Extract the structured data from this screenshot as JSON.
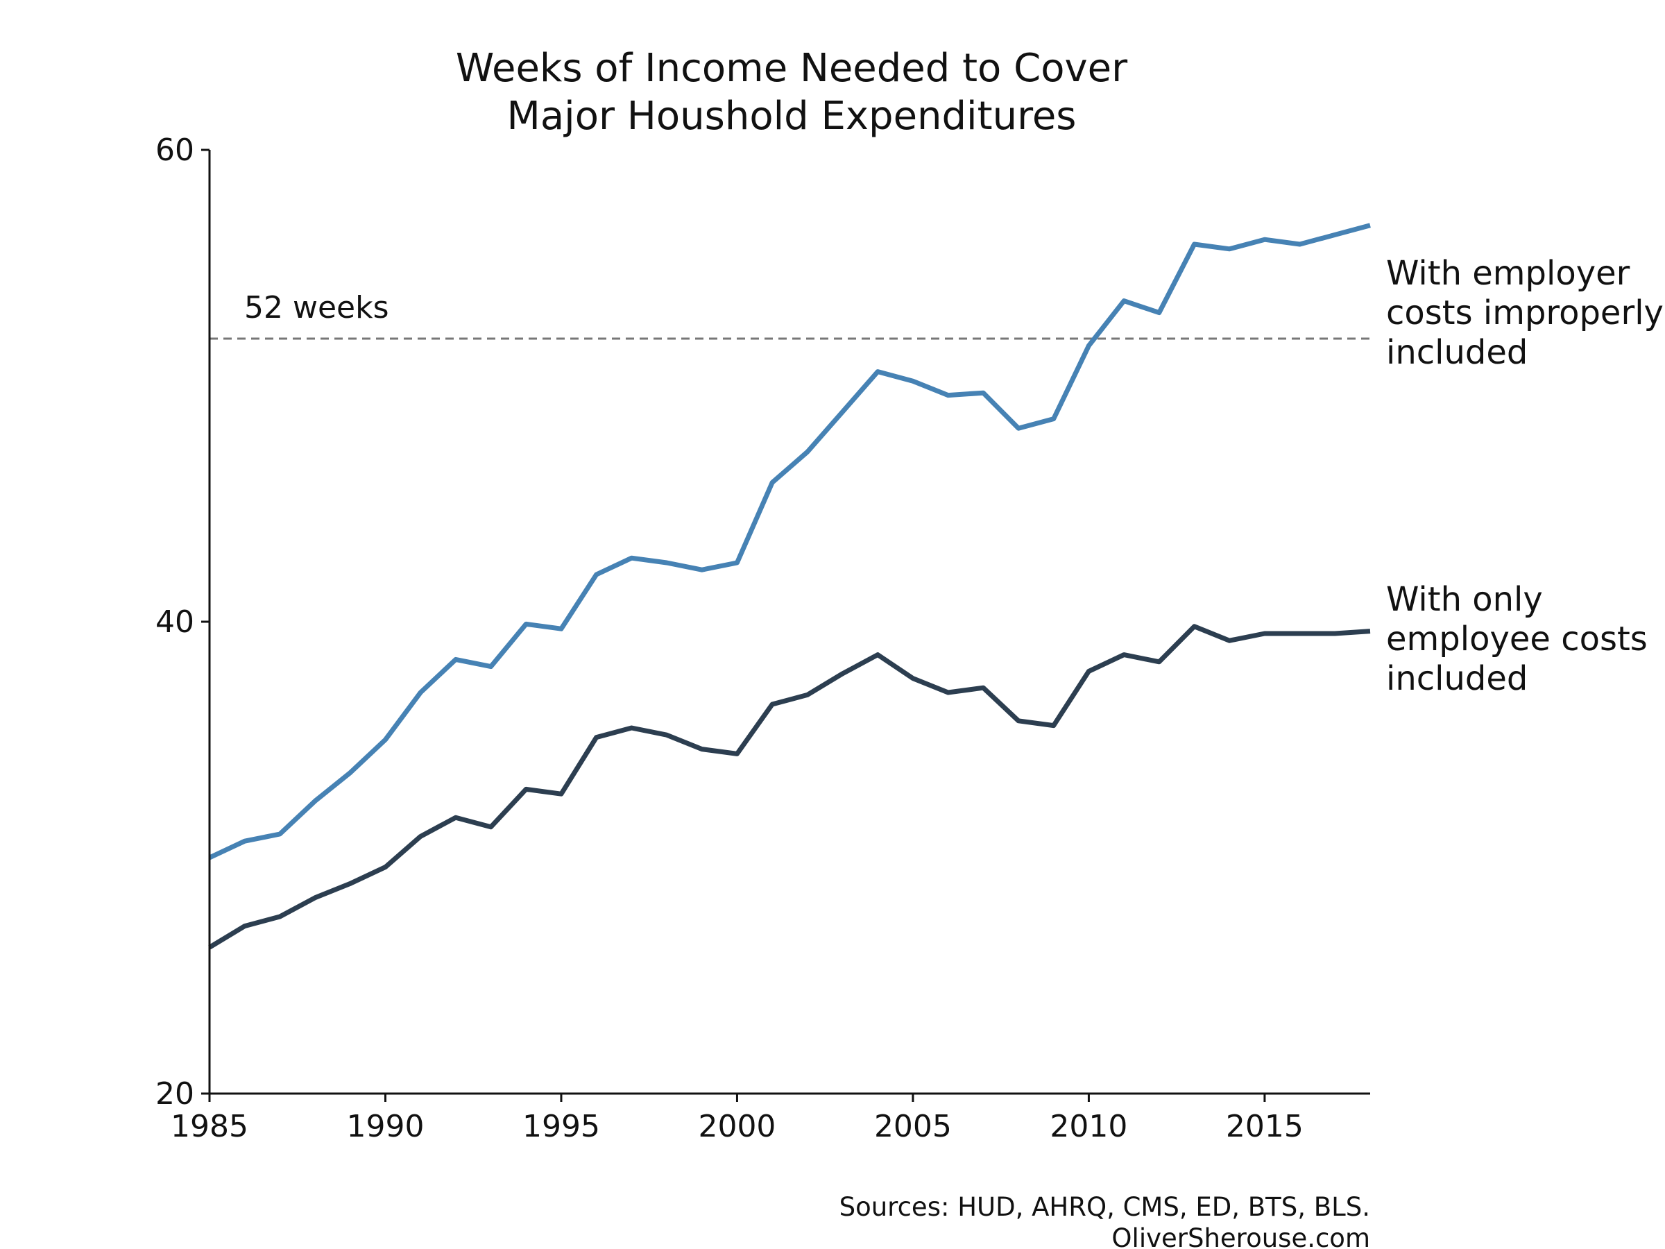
{
  "chart_data": {
    "type": "line",
    "title_lines": [
      "Weeks of Income Needed to Cover",
      "Major Houshold Expenditures"
    ],
    "xlabel": "",
    "ylabel": "",
    "xlim": [
      1985,
      2018
    ],
    "ylim": [
      20,
      60
    ],
    "x_ticks": [
      1985,
      1990,
      1995,
      2000,
      2005,
      2010,
      2015
    ],
    "y_ticks": [
      20,
      40,
      60
    ],
    "grid": false,
    "x": [
      1985,
      1986,
      1987,
      1988,
      1989,
      1990,
      1991,
      1992,
      1993,
      1994,
      1995,
      1996,
      1997,
      1998,
      1999,
      2000,
      2001,
      2002,
      2003,
      2004,
      2005,
      2006,
      2007,
      2008,
      2009,
      2010,
      2011,
      2012,
      2013,
      2014,
      2015,
      2016,
      2017,
      2018
    ],
    "series": [
      {
        "label_lines": [
          "With employer",
          "costs improperly",
          "included"
        ],
        "color": "#4682b4",
        "values": [
          30.0,
          30.7,
          31.0,
          32.4,
          33.6,
          35.0,
          37.0,
          38.4,
          38.1,
          39.9,
          39.7,
          42.0,
          42.7,
          42.5,
          42.2,
          42.5,
          45.9,
          47.2,
          48.9,
          50.6,
          50.2,
          49.6,
          49.7,
          48.2,
          48.6,
          51.7,
          53.6,
          53.1,
          56.0,
          55.8,
          56.2,
          56.0,
          56.4,
          56.8
        ]
      },
      {
        "label_lines": [
          "With only",
          "employee costs",
          "included"
        ],
        "color": "#2c3e50",
        "values": [
          26.2,
          27.1,
          27.5,
          28.3,
          28.9,
          29.6,
          30.9,
          31.7,
          31.3,
          32.9,
          32.7,
          35.1,
          35.5,
          35.2,
          34.6,
          34.4,
          36.5,
          36.9,
          37.8,
          38.6,
          37.6,
          37.0,
          37.2,
          35.8,
          35.6,
          37.9,
          38.6,
          38.3,
          39.8,
          39.2,
          39.5,
          39.5,
          39.5,
          39.6
        ]
      }
    ],
    "reference_line": {
      "y": 52,
      "label": "52 weeks",
      "color": "#777777"
    },
    "sources_lines": [
      "Sources: HUD, AHRQ, CMS, ED, BTS, BLS.",
      "OliverSherouse.com"
    ]
  }
}
